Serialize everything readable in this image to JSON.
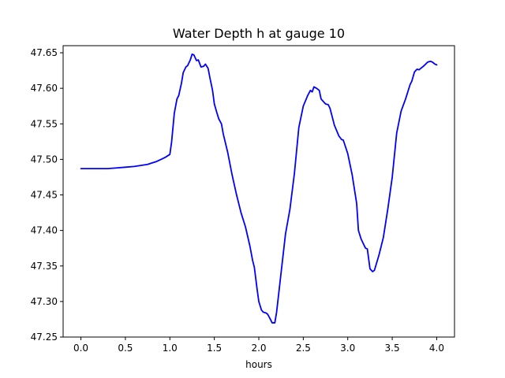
{
  "chart_data": {
    "type": "line",
    "title": "Water Depth h at gauge 10",
    "xlabel": "hours",
    "ylabel": "",
    "xlim": [
      -0.2,
      4.2
    ],
    "ylim": [
      47.25,
      47.66
    ],
    "x_ticks": [
      0.0,
      0.5,
      1.0,
      1.5,
      2.0,
      2.5,
      3.0,
      3.5,
      4.0
    ],
    "x_tick_labels": [
      "0.0",
      "0.5",
      "1.0",
      "1.5",
      "2.0",
      "2.5",
      "3.0",
      "3.5",
      "4.0"
    ],
    "y_ticks": [
      47.25,
      47.3,
      47.35,
      47.4,
      47.45,
      47.5,
      47.55,
      47.6,
      47.65
    ],
    "y_tick_labels": [
      "47.25",
      "47.30",
      "47.35",
      "47.40",
      "47.45",
      "47.50",
      "47.55",
      "47.60",
      "47.65"
    ],
    "grid": false,
    "legend": "none",
    "series": [
      {
        "color": "#0000ff",
        "x": [
          0.0,
          0.1,
          0.2,
          0.3,
          0.4,
          0.5,
          0.6,
          0.7,
          0.75,
          0.8,
          0.85,
          0.9,
          0.95,
          1.0,
          1.02,
          1.05,
          1.08,
          1.1,
          1.13,
          1.15,
          1.18,
          1.2,
          1.23,
          1.25,
          1.27,
          1.3,
          1.32,
          1.35,
          1.38,
          1.4,
          1.43,
          1.45,
          1.48,
          1.5,
          1.53,
          1.55,
          1.58,
          1.6,
          1.65,
          1.7,
          1.75,
          1.8,
          1.85,
          1.9,
          1.93,
          1.95,
          1.98,
          2.0,
          2.03,
          2.05,
          2.08,
          2.1,
          2.13,
          2.15,
          2.18,
          2.2,
          2.25,
          2.3,
          2.35,
          2.4,
          2.45,
          2.5,
          2.55,
          2.58,
          2.6,
          2.62,
          2.65,
          2.68,
          2.7,
          2.75,
          2.78,
          2.8,
          2.85,
          2.9,
          2.93,
          2.95,
          3.0,
          3.05,
          3.1,
          3.12,
          3.15,
          3.18,
          3.2,
          3.22,
          3.25,
          3.28,
          3.3,
          3.35,
          3.4,
          3.45,
          3.5,
          3.55,
          3.6,
          3.65,
          3.7,
          3.72,
          3.75,
          3.78,
          3.8,
          3.85,
          3.9,
          3.93,
          3.95,
          3.98,
          4.0
        ],
        "y": [
          47.487,
          47.487,
          47.487,
          47.487,
          47.488,
          47.489,
          47.49,
          47.492,
          47.493,
          47.495,
          47.497,
          47.5,
          47.503,
          47.507,
          47.525,
          47.565,
          47.585,
          47.59,
          47.607,
          47.622,
          47.63,
          47.632,
          47.64,
          47.648,
          47.647,
          47.639,
          47.64,
          47.63,
          47.631,
          47.634,
          47.628,
          47.615,
          47.597,
          47.578,
          47.565,
          47.557,
          47.55,
          47.536,
          47.51,
          47.478,
          47.45,
          47.425,
          47.405,
          47.378,
          47.358,
          47.348,
          47.318,
          47.3,
          47.288,
          47.285,
          47.284,
          47.282,
          47.275,
          47.27,
          47.27,
          47.285,
          47.34,
          47.395,
          47.43,
          47.48,
          47.545,
          47.575,
          47.59,
          47.597,
          47.595,
          47.602,
          47.6,
          47.597,
          47.585,
          47.578,
          47.577,
          47.572,
          47.548,
          47.533,
          47.528,
          47.527,
          47.508,
          47.478,
          47.438,
          47.4,
          47.388,
          47.38,
          47.375,
          47.374,
          47.346,
          47.342,
          47.344,
          47.365,
          47.39,
          47.43,
          47.475,
          47.537,
          47.568,
          47.585,
          47.605,
          47.61,
          47.623,
          47.627,
          47.626,
          47.631,
          47.637,
          47.638,
          47.637,
          47.634,
          47.633
        ]
      }
    ]
  }
}
